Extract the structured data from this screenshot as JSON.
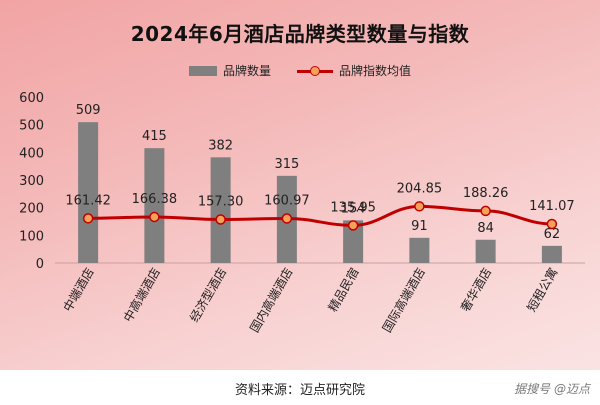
{
  "page": {
    "source": "资料来源：迈点研究院",
    "brand": "据搜号 @迈点"
  },
  "colors": {
    "bar": "#7f7f7f",
    "line": "#c00000",
    "marker_fill": "#f4a259"
  },
  "chart_data": {
    "type": "bar",
    "title": "2024年6月酒店品牌类型数量与指数",
    "legend_position": "top",
    "categories": [
      "中端酒店",
      "中高端酒店",
      "经济型酒店",
      "国内高端酒店",
      "精品民宿",
      "国际高端酒店",
      "奢华酒店",
      "短租公寓"
    ],
    "ylim": [
      0,
      600
    ],
    "yticks": [
      0,
      100,
      200,
      300,
      400,
      500,
      600
    ],
    "grid": false,
    "series": [
      {
        "name": "品牌数量",
        "type": "bar",
        "values": [
          509,
          415,
          382,
          315,
          154,
          91,
          84,
          62
        ]
      },
      {
        "name": "品牌指数均值",
        "type": "line",
        "values": [
          161.42,
          166.38,
          157.3,
          160.97,
          135.95,
          204.85,
          188.26,
          141.07
        ]
      }
    ]
  }
}
